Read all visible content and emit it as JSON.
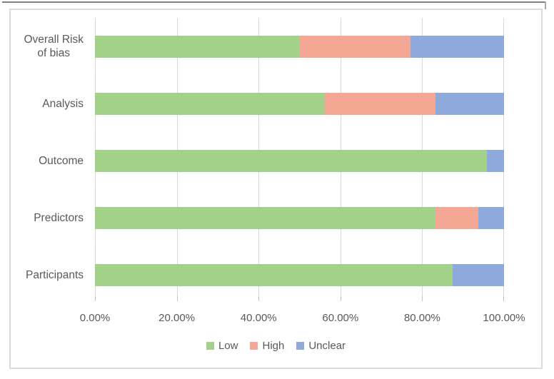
{
  "chart_data": {
    "type": "bar",
    "orientation": "horizontal",
    "stacked": true,
    "title": "",
    "xlabel": "",
    "ylabel": "",
    "xlim": [
      0,
      100
    ],
    "grid": "vertical-major",
    "legend_position": "bottom",
    "categories": [
      "Overall Risk\nof bias",
      "Analysis",
      "Outcome",
      "Predictors",
      "Participants"
    ],
    "series": [
      {
        "name": "Low",
        "color": "#a3d18a",
        "values": [
          50.0,
          56.25,
          95.83,
          83.33,
          87.5
        ]
      },
      {
        "name": "High",
        "color": "#f4a794",
        "values": [
          27.08,
          27.08,
          0.0,
          10.42,
          0.0
        ]
      },
      {
        "name": "Unclear",
        "color": "#8fa9db",
        "values": [
          22.92,
          16.67,
          4.17,
          6.25,
          12.5
        ]
      }
    ],
    "x_ticks": [
      "0.00%",
      "20.00%",
      "40.00%",
      "60.00%",
      "80.00%",
      "100.00%"
    ]
  },
  "colors": {
    "gridline": "#d9d9d9",
    "chart_border": "#dbdbdb",
    "axis_text": "#595959",
    "outer_line": "#7f7f7f"
  }
}
